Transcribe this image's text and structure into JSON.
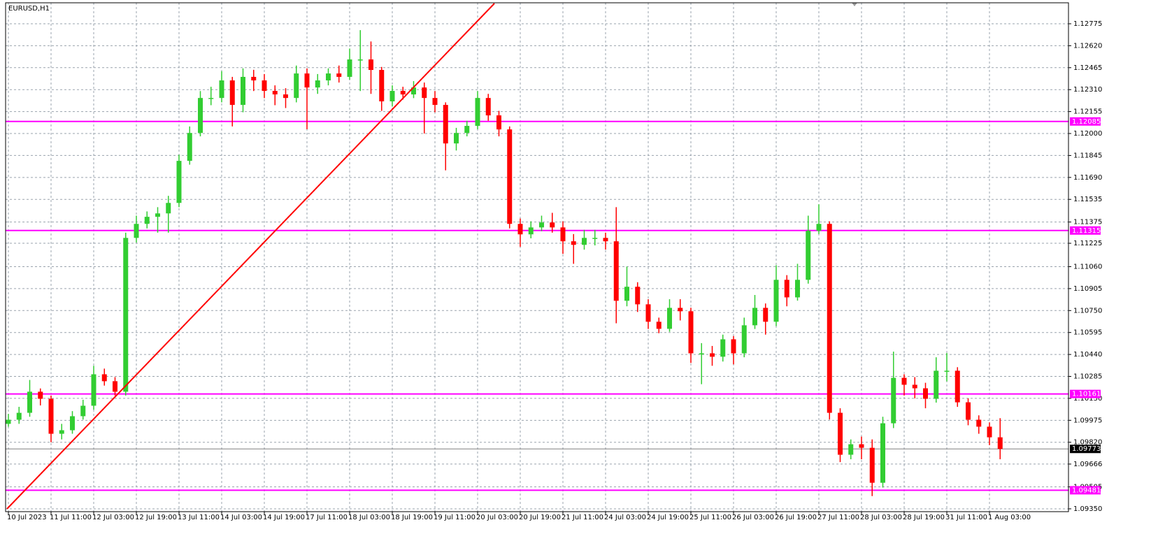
{
  "chart_data": {
    "type": "candlestick",
    "title": "EURUSD,H1",
    "categories": [
      "10 Jul 2023",
      null,
      null,
      null,
      "11 Jul 11:00",
      null,
      null,
      null,
      "12 Jul 03:00",
      null,
      null,
      null,
      "12 Jul 19:00",
      null,
      null,
      null,
      "13 Jul 11:00",
      null,
      null,
      null,
      "14 Jul 03:00",
      null,
      null,
      null,
      "14 Jul 19:00",
      null,
      null,
      null,
      "17 Jul 11:00",
      null,
      null,
      null,
      "18 Jul 03:00",
      null,
      null,
      null,
      "18 Jul 19:00",
      null,
      null,
      null,
      "19 Jul 11:00",
      null,
      null,
      null,
      "20 Jul 03:00",
      null,
      null,
      null,
      "20 Jul 19:00",
      null,
      null,
      null,
      "21 Jul 11:00",
      null,
      null,
      null,
      "24 Jul 03:00",
      null,
      null,
      null,
      "24 Jul 19:00",
      null,
      null,
      null,
      "25 Jul 11:00",
      null,
      null,
      null,
      "26 Jul 03:00",
      null,
      null,
      null,
      "26 Jul 19:00",
      null,
      null,
      null,
      "27 Jul 11:00",
      null,
      null,
      null,
      "28 Jul 03:00",
      null,
      null,
      null,
      "28 Jul 19:00",
      null,
      null,
      null,
      "31 Jul 11:00",
      null,
      null,
      null,
      "1 Aug 03:00",
      null
    ],
    "open": [
      1.0995,
      1.09979,
      1.10028,
      1.10177,
      1.10127,
      1.0988,
      1.09905,
      1.10004,
      1.10078,
      1.103,
      1.10251,
      1.10177,
      1.11263,
      1.11362,
      1.11412,
      1.11436,
      1.1151,
      1.11807,
      1.12004,
      1.12251,
      1.12251,
      1.12375,
      1.12202,
      1.124,
      1.12375,
      1.12301,
      1.12276,
      1.12251,
      1.12424,
      1.12325,
      1.12375,
      1.12424,
      1.124,
      1.12523,
      1.12523,
      1.12449,
      1.12227,
      1.12301,
      1.12276,
      1.12325,
      1.12251,
      1.12202,
      1.1193,
      1.12004,
      1.12054,
      1.12251,
      1.12128,
      1.12029,
      1.11362,
      1.11288,
      1.11337,
      1.11372,
      1.11337,
      1.11239,
      1.11214,
      1.11263,
      1.11263,
      1.11239,
      1.10819,
      1.10918,
      1.10794,
      1.10671,
      1.10621,
      1.10769,
      1.10745,
      1.10448,
      1.10448,
      1.10424,
      1.10547,
      1.10448,
      1.10646,
      1.10769,
      1.10671,
      1.10967,
      1.10843,
      1.10967,
      1.11313,
      1.11362,
      1.10028,
      1.09732,
      1.09806,
      1.09781,
      1.09534,
      1.09954,
      1.10275,
      1.10226,
      1.10201,
      1.10127,
      1.10325,
      1.10325,
      1.10102,
      1.09979,
      1.0993,
      1.09855
    ],
    "high": [
      1.1002,
      1.1007,
      1.1026,
      1.102,
      1.1015,
      1.0995,
      1.1004,
      1.1012,
      1.1036,
      1.1034,
      1.1028,
      1.113,
      1.1142,
      1.1145,
      1.1148,
      1.1156,
      1.1185,
      1.1205,
      1.123,
      1.1233,
      1.1244,
      1.124,
      1.1246,
      1.1245,
      1.1242,
      1.1234,
      1.1232,
      1.1248,
      1.1246,
      1.1242,
      1.1246,
      1.1248,
      1.126,
      1.1273,
      1.1265,
      1.1247,
      1.1234,
      1.1233,
      1.1237,
      1.1236,
      1.123,
      1.1222,
      1.1204,
      1.1209,
      1.123,
      1.1228,
      1.1216,
      1.1205,
      1.114,
      1.1138,
      1.1142,
      1.1144,
      1.1138,
      1.1129,
      1.1132,
      1.1132,
      1.113,
      1.1148,
      1.1106,
      1.1095,
      1.1083,
      1.107,
      1.1083,
      1.1083,
      1.1077,
      1.1052,
      1.105,
      1.1058,
      1.1057,
      1.107,
      1.1086,
      1.108,
      1.1107,
      1.11,
      1.1108,
      1.1142,
      1.115,
      1.1138,
      1.1006,
      1.0984,
      1.0986,
      1.0984,
      1.1,
      1.1046,
      1.103,
      1.1028,
      1.1024,
      1.1042,
      1.1045,
      1.1035,
      1.1013,
      1.1001,
      1.0996,
      1.0999
    ],
    "low": [
      1.0993,
      1.0995,
      1.1,
      1.1008,
      1.0982,
      1.0984,
      1.0988,
      1.0998,
      1.1005,
      1.1022,
      1.1015,
      1.1015,
      1.1123,
      1.1133,
      1.113,
      1.113,
      1.1148,
      1.1178,
      1.1198,
      1.122,
      1.1222,
      1.1205,
      1.1215,
      1.123,
      1.1225,
      1.122,
      1.1218,
      1.1222,
      1.1203,
      1.1228,
      1.1234,
      1.1236,
      1.1238,
      1.123,
      1.1228,
      1.1216,
      1.1219,
      1.1224,
      1.1225,
      1.12,
      1.1215,
      1.1174,
      1.1188,
      1.1198,
      1.1203,
      1.1209,
      1.1198,
      1.1133,
      1.112,
      1.1126,
      1.1131,
      1.113,
      1.1115,
      1.1108,
      1.1118,
      1.1121,
      1.1118,
      1.1066,
      1.1078,
      1.1074,
      1.1062,
      1.1059,
      1.106,
      1.1068,
      1.1038,
      1.1023,
      1.1036,
      1.1039,
      1.1037,
      1.1042,
      1.1062,
      1.1058,
      1.1064,
      1.1078,
      1.1082,
      1.1094,
      1.1129,
      1.0998,
      1.0968,
      1.097,
      1.097,
      1.0944,
      1.095,
      1.0992,
      1.1015,
      1.1013,
      1.1006,
      1.101,
      1.1025,
      1.1007,
      1.0994,
      1.0988,
      1.098,
      1.097
    ],
    "close": [
      1.09979,
      1.10028,
      1.10177,
      1.10127,
      1.0988,
      1.09905,
      1.10004,
      1.10078,
      1.103,
      1.10251,
      1.10177,
      1.11263,
      1.11362,
      1.11412,
      1.11436,
      1.1151,
      1.11807,
      1.12004,
      1.12251,
      1.12251,
      1.12375,
      1.12202,
      1.124,
      1.12375,
      1.12301,
      1.12276,
      1.12251,
      1.12424,
      1.12325,
      1.12375,
      1.12424,
      1.124,
      1.12523,
      1.12523,
      1.12449,
      1.12227,
      1.12301,
      1.12276,
      1.12325,
      1.12251,
      1.12202,
      1.1193,
      1.12004,
      1.12054,
      1.12251,
      1.12128,
      1.12029,
      1.11362,
      1.11288,
      1.11337,
      1.11372,
      1.11337,
      1.11239,
      1.11214,
      1.11263,
      1.11263,
      1.11239,
      1.10819,
      1.10918,
      1.10794,
      1.10671,
      1.10621,
      1.10769,
      1.10745,
      1.10448,
      1.10448,
      1.10424,
      1.10547,
      1.10448,
      1.10646,
      1.10769,
      1.10671,
      1.10967,
      1.10843,
      1.10967,
      1.11313,
      1.11362,
      1.10028,
      1.09732,
      1.09806,
      1.09781,
      1.09534,
      1.09954,
      1.10275,
      1.10226,
      1.10201,
      1.10127,
      1.10325,
      1.10325,
      1.10102,
      1.09979,
      1.0993,
      1.09855,
      1.09773
    ],
    "up_color": "#32cd32",
    "down_color": "#ff0000",
    "ylim": [
      1.0933,
      1.12923
    ],
    "yticks": [
      {
        "value": 1.0935,
        "label": "1.09350"
      },
      {
        "value": 1.09505,
        "label": "1.09505"
      },
      {
        "value": 1.09666,
        "label": "1.09666"
      },
      {
        "value": 1.0982,
        "label": "1.09820"
      },
      {
        "value": 1.09975,
        "label": "1.09975"
      },
      {
        "value": 1.1013,
        "label": "1.10130"
      },
      {
        "value": 1.10285,
        "label": "1.10285"
      },
      {
        "value": 1.1044,
        "label": "1.10440"
      },
      {
        "value": 1.10595,
        "label": "1.10595"
      },
      {
        "value": 1.1075,
        "label": "1.10750"
      },
      {
        "value": 1.10905,
        "label": "1.10905"
      },
      {
        "value": 1.1106,
        "label": "1.11060"
      },
      {
        "value": 1.11225,
        "label": "1.11225"
      },
      {
        "value": 1.11375,
        "label": "1.11375"
      },
      {
        "value": 1.11535,
        "label": "1.11535"
      },
      {
        "value": 1.1169,
        "label": "1.11690"
      },
      {
        "value": 1.11845,
        "label": "1.11845"
      },
      {
        "value": 1.12,
        "label": "1.12000"
      },
      {
        "value": 1.12155,
        "label": "1.12155"
      },
      {
        "value": 1.1231,
        "label": "1.12310"
      },
      {
        "value": 1.12465,
        "label": "1.12465"
      },
      {
        "value": 1.1262,
        "label": "1.12620"
      },
      {
        "value": 1.12775,
        "label": "1.12775"
      }
    ],
    "grid": true,
    "levels": [
      {
        "value": 1.12085,
        "label": "1.12085"
      },
      {
        "value": 1.11315,
        "label": "1.11315"
      },
      {
        "value": 1.10161,
        "label": "1.10161"
      },
      {
        "value": 1.09481,
        "label": "1.09481"
      }
    ],
    "level_color": "#ff00ff",
    "last": {
      "value": 1.09773,
      "label": "1.09773"
    }
  }
}
